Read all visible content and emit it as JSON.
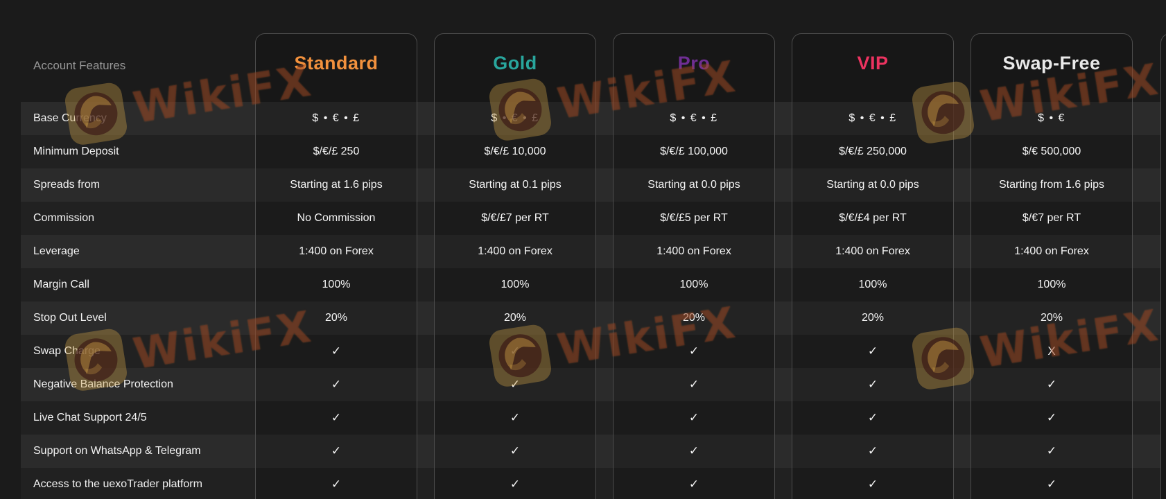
{
  "table": {
    "corner_label": "Account Features",
    "features": [
      "Base Currency",
      "Minimum Deposit",
      "Spreads from",
      "Commission",
      "Leverage",
      "Margin Call",
      "Stop Out Level",
      "Swap Charge",
      "Negative Balance Protection",
      "Live Chat Support 24/5",
      "Support on WhatsApp & Telegram",
      "Access to the uexoTrader platform"
    ],
    "plans": [
      {
        "name": "Standard",
        "color": "#f2913d",
        "values": [
          "$ • € • £",
          "$/€/£ 250",
          "Starting at 1.6 pips",
          "No Commission",
          "1:400 on Forex",
          "100%",
          "20%",
          "✓",
          "✓",
          "✓",
          "✓",
          "✓"
        ]
      },
      {
        "name": "Gold",
        "color": "#29a69d",
        "values": [
          "$ • € • £",
          "$/€/£ 10,000",
          "Starting at 0.1 pips",
          "$/€/£7 per RT",
          "1:400 on Forex",
          "100%",
          "20%",
          "✓",
          "✓",
          "✓",
          "✓",
          "✓"
        ]
      },
      {
        "name": "Pro",
        "color": "#6f2e93",
        "values": [
          "$ • € • £",
          "$/€/£ 100,000",
          "Starting at 0.0 pips",
          "$/€/£5 per RT",
          "1:400 on Forex",
          "100%",
          "20%",
          "✓",
          "✓",
          "✓",
          "✓",
          "✓"
        ]
      },
      {
        "name": "VIP",
        "color": "#ec3360",
        "values": [
          "$ • € • £",
          "$/€/£ 250,000",
          "Starting at 0.0 pips",
          "$/€/£4 per RT",
          "1:400 on Forex",
          "100%",
          "20%",
          "✓",
          "✓",
          "✓",
          "✓",
          "✓"
        ]
      },
      {
        "name": "Swap-Free",
        "color": "#e9e9e9",
        "values": [
          "$ • €",
          "$/€ 500,000",
          "Starting from 1.6 pips",
          "$/€7 per RT",
          "1:400 on Forex",
          "100%",
          "20%",
          "X",
          "✓",
          "✓",
          "✓",
          "✓"
        ]
      }
    ]
  },
  "watermark": {
    "text": "WikiFX"
  },
  "colors": {
    "background": "#1b1b1b",
    "row_light": "#2b2b2b",
    "row_dark": "#212121",
    "card_border": "#4d4d4d",
    "label_text": "#f2f2f2",
    "corner_label_text": "#979797"
  }
}
